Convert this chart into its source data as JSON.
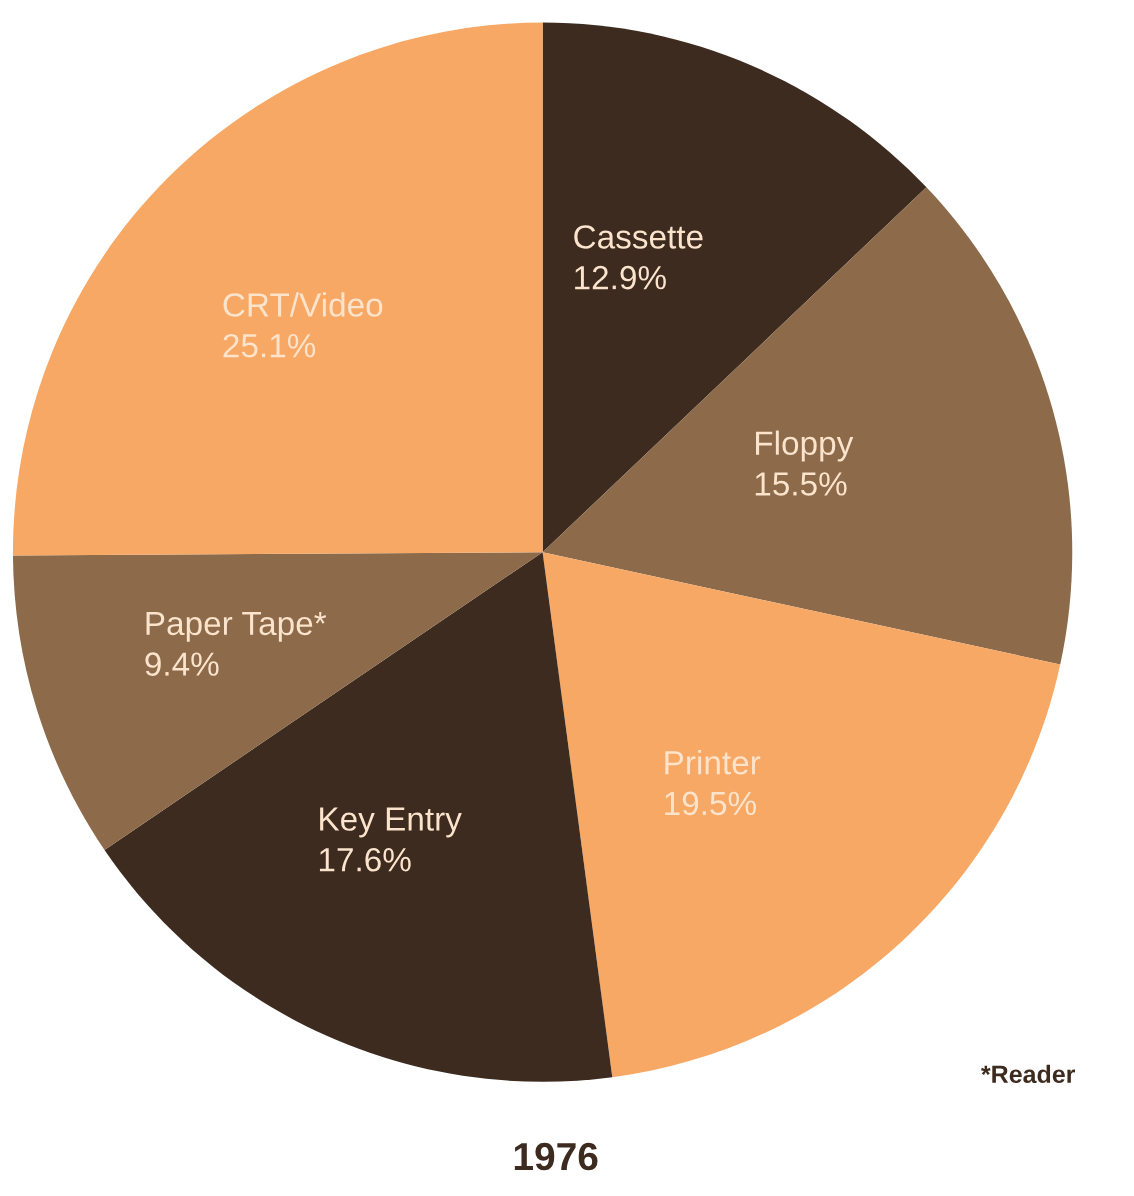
{
  "chart_data": {
    "type": "pie",
    "title": "1976",
    "categories": [
      "Cassette",
      "Floppy",
      "Printer",
      "Key Entry",
      "Paper Tape*",
      "CRT/Video"
    ],
    "values": [
      12.9,
      15.5,
      19.5,
      17.6,
      9.4,
      25.1
    ],
    "value_labels": [
      "12.9%",
      "15.5%",
      "19.5%",
      "17.6%",
      "9.4%",
      "25.1%"
    ],
    "colors": [
      "#3d2b1f",
      "#8c6a4a",
      "#f7a865",
      "#3d2b1f",
      "#8c6a4a",
      "#f7a865"
    ],
    "annotations": [
      "*Reader"
    ]
  }
}
